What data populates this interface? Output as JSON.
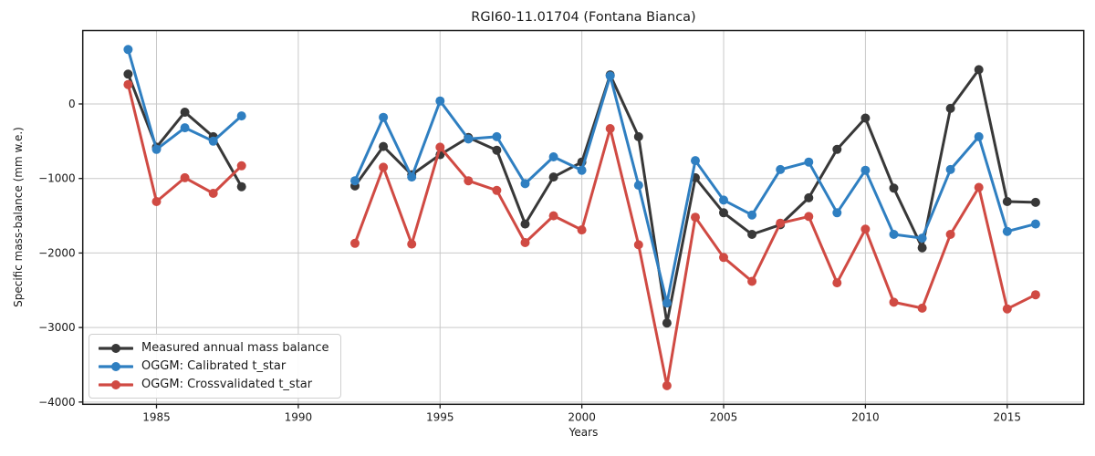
{
  "chart_data": {
    "type": "line",
    "title": "RGI60-11.01704 (Fontana Bianca)",
    "xlabel": "Years",
    "ylabel": "Specific mass-balance (mm w.e.)",
    "grid": true,
    "legend_position": "lower left",
    "xlim": [
      1982.4,
      2017.7
    ],
    "ylim": [
      -4030,
      985
    ],
    "x_ticks": [
      1985,
      1990,
      1995,
      2000,
      2005,
      2010,
      2015
    ],
    "y_tick_values": [
      0,
      -1000,
      -2000,
      -3000,
      -4000
    ],
    "y_tick_labels": [
      "0",
      "−1000",
      "−2000",
      "−3000",
      "−4000"
    ],
    "years": [
      1984,
      1985,
      1986,
      1987,
      1988,
      1989,
      1990,
      1991,
      1992,
      1993,
      1994,
      1995,
      1996,
      1997,
      1998,
      1999,
      2000,
      2001,
      2002,
      2003,
      2004,
      2005,
      2006,
      2007,
      2008,
      2009,
      2010,
      2011,
      2012,
      2013,
      2014,
      2015,
      2016
    ],
    "series": [
      {
        "id": "measured",
        "name": "Measured annual mass balance",
        "color": "#383838",
        "values": [
          400,
          -580,
          -110,
          -440,
          -1110,
          null,
          null,
          null,
          -1100,
          -570,
          -950,
          -680,
          -450,
          -620,
          -1610,
          -980,
          -780,
          390,
          -440,
          -2940,
          -990,
          -1460,
          -1750,
          -1620,
          -1260,
          -610,
          -190,
          -1130,
          -1930,
          -60,
          460,
          -1310,
          -1320
        ]
      },
      {
        "id": "oggm-calibrated",
        "name": "OGGM: Calibrated t_star",
        "color": "#2f7fc1",
        "values": [
          730,
          -610,
          -320,
          -500,
          -160,
          null,
          null,
          null,
          -1030,
          -180,
          -980,
          40,
          -470,
          -440,
          -1070,
          -710,
          -890,
          375,
          -1090,
          -2670,
          -760,
          -1290,
          -1490,
          -880,
          -780,
          -1460,
          -890,
          -1750,
          -1800,
          -880,
          -440,
          -1710,
          -1610
        ]
      },
      {
        "id": "oggm-crossvalidated",
        "name": "OGGM: Crossvalidated t_star",
        "color": "#d04a43",
        "values": [
          260,
          -1310,
          -990,
          -1200,
          -830,
          null,
          null,
          null,
          -1870,
          -850,
          -1880,
          -580,
          -1030,
          -1160,
          -1860,
          -1500,
          -1690,
          -330,
          -1890,
          -3780,
          -1520,
          -2060,
          -2380,
          -1600,
          -1510,
          -2400,
          -1680,
          -2660,
          -2740,
          -1750,
          -1120,
          -2750,
          -2560
        ]
      }
    ]
  }
}
